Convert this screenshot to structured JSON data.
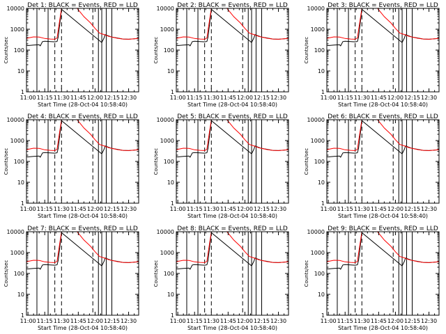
{
  "colors": {
    "background": "#ffffff",
    "events": "#000000",
    "lld": "#ff0000",
    "axes": "#000000"
  },
  "chart_data": {
    "type": "line",
    "y_scale": "log",
    "ylim": [
      1,
      10000
    ],
    "y_ticks": [
      1,
      10,
      100,
      1000,
      10000
    ],
    "y_tick_labels": [
      "1",
      "10",
      "100",
      "1000",
      "10000"
    ],
    "x_ticks": [
      "11:00",
      "11:15",
      "11:30",
      "11:45",
      "12:00",
      "12:15",
      "12:30"
    ],
    "xlim": [
      "10:58:40",
      "12:39:00"
    ],
    "ylabel": "Counts/sec",
    "xlabel": "Start Time (28-Oct-04 10:58:40)",
    "grid": false,
    "panels": [
      {
        "title": "Det 1:  BLACK = Events, RED = LLD"
      },
      {
        "title": "Det 2:  BLACK = Events, RED = LLD"
      },
      {
        "title": "Det 3:  BLACK = Events, RED = LLD"
      },
      {
        "title": "Det 4:  BLACK = Events, RED = LLD"
      },
      {
        "title": "Det 5:  BLACK = Events, RED = LLD"
      },
      {
        "title": "Det 6:  BLACK = Events, RED = LLD"
      },
      {
        "title": "Det 7:  BLACK = Events, RED = LLD"
      },
      {
        "title": "Det 8:  BLACK = Events, RED = LLD"
      },
      {
        "title": "Det 9:  BLACK = Events, RED = LLD"
      }
    ],
    "series": [
      {
        "name": "Events",
        "color": "#000000",
        "points": [
          [
            "10:58:40",
            170
          ],
          [
            "11:00",
            165
          ],
          [
            "11:05",
            175
          ],
          [
            "11:10",
            180
          ],
          [
            "11:11",
            160
          ],
          [
            "11:13",
            255
          ],
          [
            "11:15",
            265
          ],
          [
            "11:20",
            255
          ],
          [
            "11:24",
            250
          ],
          [
            "11:26",
            260
          ],
          [
            "11:27",
            420
          ],
          [
            "11:30",
            9000
          ],
          [
            "12:06",
            230
          ],
          [
            "12:08",
            380
          ],
          [
            "12:09",
            550
          ],
          [
            "12:12",
            480
          ],
          [
            "12:15",
            420
          ],
          [
            "12:20",
            380
          ],
          [
            "12:25",
            340
          ],
          [
            "12:30",
            330
          ],
          [
            "12:35",
            350
          ],
          [
            "12:39",
            360
          ]
        ]
      },
      {
        "name": "LLD",
        "color": "#ff0000",
        "points": [
          [
            "10:58:40",
            350
          ],
          [
            "11:00",
            380
          ],
          [
            "11:05",
            430
          ],
          [
            "11:10",
            420
          ],
          [
            "11:15",
            360
          ],
          [
            "11:20",
            340
          ],
          [
            "11:24",
            330
          ],
          [
            "11:26",
            380
          ],
          [
            "11:27",
            900
          ],
          [
            "11:30",
            12000
          ],
          [
            "11:44",
            12000
          ],
          [
            "11:50",
            4000
          ],
          [
            "11:56",
            2000
          ],
          [
            "12:00",
            1100
          ],
          [
            "12:04",
            650
          ],
          [
            "12:08",
            560
          ],
          [
            "12:12",
            460
          ],
          [
            "12:15",
            420
          ],
          [
            "12:20",
            370
          ],
          [
            "12:25",
            340
          ],
          [
            "12:30",
            330
          ],
          [
            "12:35",
            350
          ],
          [
            "12:39",
            370
          ]
        ]
      }
    ],
    "vlines": [
      {
        "x": "11:08",
        "style": "solid"
      },
      {
        "x": "11:18",
        "style": "solid"
      },
      {
        "x": "11:24",
        "style": "dashed"
      },
      {
        "x": "11:30",
        "style": "dashed"
      },
      {
        "x": "11:58",
        "style": "dashed"
      },
      {
        "x": "12:03",
        "style": "solid"
      },
      {
        "x": "12:06",
        "style": "solid"
      },
      {
        "x": "12:10",
        "style": "solid"
      },
      {
        "x": "12:15",
        "style": "solid"
      }
    ]
  }
}
